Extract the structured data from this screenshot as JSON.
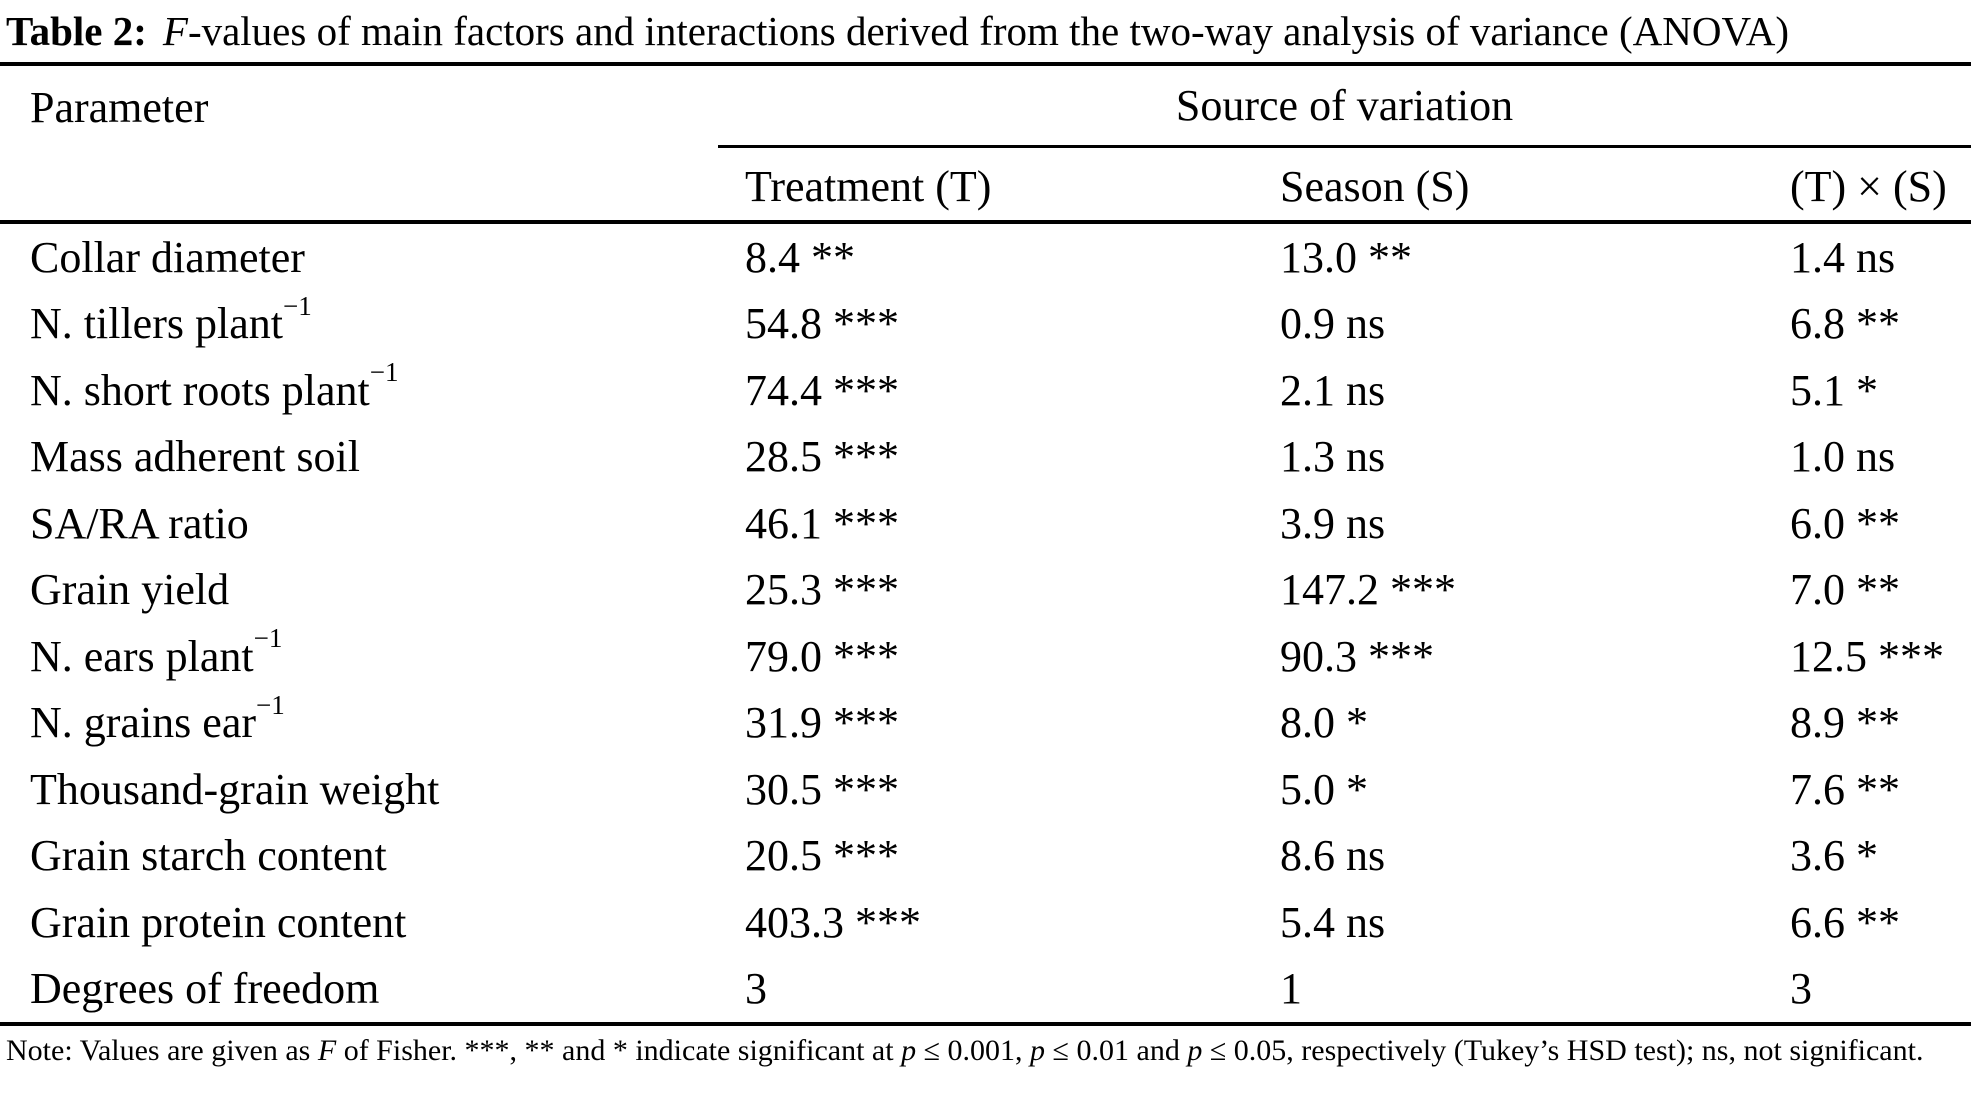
{
  "title": {
    "label": "Table 2:",
    "f": "F",
    "text": "-values of main factors and interactions derived from the two-way analysis of variance (ANOVA)"
  },
  "header": {
    "parameter": "Parameter",
    "source_of_variation": "Source of variation",
    "col_treatment": "Treatment (T)",
    "col_season": "Season (S)",
    "col_interaction": "(T) × (S)"
  },
  "rows": [
    {
      "param": "Collar diameter",
      "sup": "",
      "treatment": "8.4 **",
      "season": "13.0 **",
      "interaction": "1.4 ns"
    },
    {
      "param": "N. tillers plant",
      "sup": "−1",
      "treatment": "54.8 ***",
      "season": "0.9 ns",
      "interaction": "6.8 **"
    },
    {
      "param": "N. short roots plant",
      "sup": "−1",
      "treatment": "74.4 ***",
      "season": "2.1 ns",
      "interaction": "5.1 *"
    },
    {
      "param": "Mass adherent soil",
      "sup": "",
      "treatment": "28.5 ***",
      "season": "1.3 ns",
      "interaction": "1.0 ns"
    },
    {
      "param": "SA/RA ratio",
      "sup": "",
      "treatment": "46.1 ***",
      "season": "3.9 ns",
      "interaction": "6.0 **"
    },
    {
      "param": "Grain yield",
      "sup": "",
      "treatment": "25.3 ***",
      "season": "147.2 ***",
      "interaction": "7.0 **"
    },
    {
      "param": "N. ears plant",
      "sup": "−1",
      "treatment": "79.0 ***",
      "season": "90.3 ***",
      "interaction": "12.5 ***"
    },
    {
      "param": "N. grains ear",
      "sup": "−1",
      "treatment": "31.9 ***",
      "season": "8.0 *",
      "interaction": "8.9 **"
    },
    {
      "param": "Thousand-grain weight",
      "sup": "",
      "treatment": "30.5 ***",
      "season": "5.0 *",
      "interaction": "7.6 **"
    },
    {
      "param": "Grain starch content",
      "sup": "",
      "treatment": "20.5 ***",
      "season": "8.6 ns",
      "interaction": "3.6 *"
    },
    {
      "param": "Grain protein content",
      "sup": "",
      "treatment": "403.3 ***",
      "season": "5.4 ns",
      "interaction": "6.6 **"
    },
    {
      "param": "Degrees of freedom",
      "sup": "",
      "treatment": "3",
      "season": "1",
      "interaction": "3"
    }
  ],
  "footnote": {
    "seg1": "Note: Values are given as ",
    "f": "F",
    "seg2": " of Fisher. ***, ** and * indicate significant at ",
    "p1": "p",
    "seg3": " ≤ 0.001, ",
    "p2": "p",
    "seg4": " ≤ 0.01 and ",
    "p3": "p",
    "seg5": " ≤ 0.05, respectively (Tukey’s HSD test); ns, not significant."
  },
  "colors": {
    "text": "#000000",
    "background": "#ffffff",
    "rule": "#000000"
  }
}
